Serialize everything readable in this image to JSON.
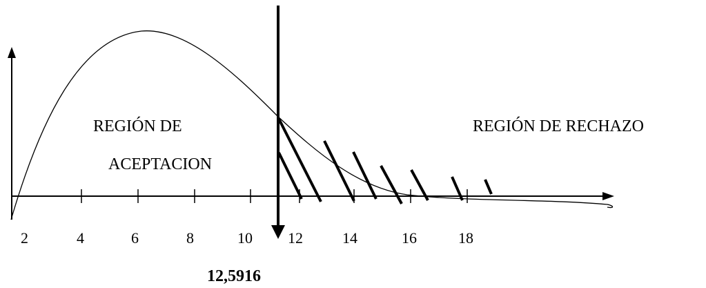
{
  "x_tick_labels": [
    "2",
    "4",
    "6",
    "8",
    "10",
    "12",
    "14",
    "16",
    "18"
  ],
  "acceptance_region": {
    "line1": "REGIÓN DE",
    "line2": "ACEPTACION"
  },
  "rejection_region": {
    "label": "REGIÓN DE RECHAZO"
  },
  "critical_value": "12,5916",
  "colors": {
    "ink": "#000000",
    "background": "#ffffff"
  }
}
